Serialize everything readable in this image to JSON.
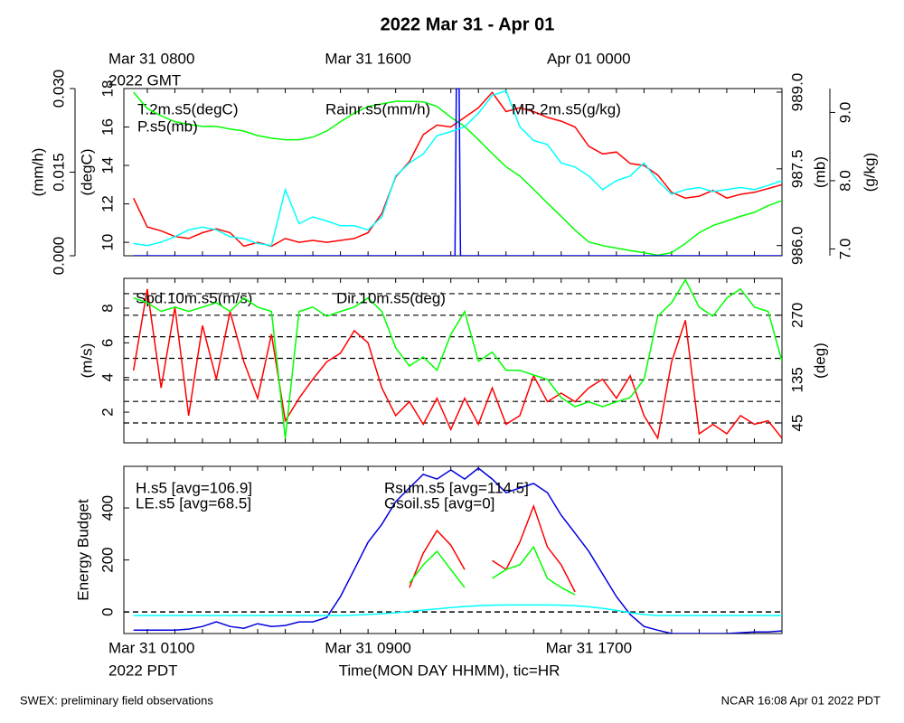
{
  "title": "2022 Mar 31 - Apr 01",
  "footer_left": "SWEX: preliminary field observations",
  "footer_right": "NCAR 16:08 Apr 01 2022 PDT",
  "chart_data": [
    {
      "type": "line",
      "xlim": [
        -0.85,
        23
      ],
      "x2ticks": [
        {
          "value": 0,
          "label": "Mar 31 0800"
        },
        {
          "value": 8,
          "label": "Mar 31 1600"
        },
        {
          "value": 16,
          "label": "Apr 01 0000"
        }
      ],
      "x2_note": "2022 GMT",
      "axes": [
        {
          "label": "(mm/h)",
          "lim": [
            0,
            0.03
          ],
          "ticks": [
            {
              "value": 0,
              "label": "0.000"
            },
            {
              "value": 0.015,
              "label": "0.015"
            },
            {
              "value": 0.03,
              "label": "0.030"
            }
          ],
          "side": "left"
        },
        {
          "label": "(degC)",
          "lim": [
            9.3,
            18
          ],
          "ticks": [
            10,
            12,
            14,
            16,
            18
          ],
          "side": "left"
        },
        {
          "label": "(mb)",
          "lim": [
            985.8,
            989.07
          ],
          "ticks": [
            {
              "value": 986,
              "label": "986.0"
            },
            {
              "value": 987.5,
              "label": "987.5"
            },
            {
              "value": 989,
              "label": "989.0"
            }
          ],
          "side": "right"
        },
        {
          "label": "(g/kg)",
          "lim": [
            6.9,
            9.35
          ],
          "ticks": [
            {
              "value": 7,
              "label": "7.0"
            },
            {
              "value": 8,
              "label": "8.0"
            },
            {
              "value": 9,
              "label": "9.0"
            }
          ],
          "side": "right"
        }
      ],
      "x": [
        -0.5,
        0,
        0.5,
        1,
        1.5,
        2,
        2.5,
        3,
        3.5,
        4,
        4.5,
        5,
        5.5,
        6,
        6.5,
        7,
        7.5,
        8,
        8.5,
        9,
        9.5,
        10,
        10.5,
        11,
        11.5,
        12,
        12.5,
        13,
        13.5,
        14,
        14.5,
        15,
        15.5,
        16,
        16.5,
        17,
        17.5,
        18,
        18.5,
        19,
        19.5,
        20,
        20.5,
        21,
        21.5,
        22,
        22.5,
        23
      ],
      "series": [
        {
          "name": "T.2m.s5(degC)",
          "color": "#ff0000",
          "axis": 1,
          "values": [
            12.3,
            10.8,
            10.6,
            10.3,
            10.2,
            10.5,
            10.7,
            10.5,
            9.8,
            10.0,
            9.8,
            10.2,
            10.0,
            10.1,
            10.0,
            10.1,
            10.2,
            10.5,
            11.5,
            13.4,
            14.2,
            15.6,
            16.1,
            16.0,
            16.5,
            17.0,
            17.8,
            16.8,
            17.0,
            16.8,
            16.5,
            16.3,
            16.0,
            15.0,
            14.6,
            14.7,
            14.1,
            14.0,
            13.5,
            12.6,
            12.3,
            12.4,
            12.7,
            12.3,
            12.5,
            12.6,
            12.8,
            13.0
          ]
        },
        {
          "name": "P.s5(mb)",
          "color": "#00ff00",
          "axis": 2,
          "values": [
            989.0,
            988.68,
            988.54,
            988.42,
            988.37,
            988.33,
            988.33,
            988.28,
            988.24,
            988.15,
            988.1,
            988.07,
            988.07,
            988.12,
            988.24,
            988.42,
            988.59,
            988.72,
            988.77,
            988.82,
            988.82,
            988.81,
            988.72,
            988.51,
            988.33,
            988.07,
            987.8,
            987.54,
            987.36,
            987.1,
            986.83,
            986.57,
            986.3,
            986.07,
            986.0,
            985.95,
            985.9,
            985.86,
            985.81,
            985.86,
            986.04,
            986.25,
            986.39,
            986.48,
            986.57,
            986.65,
            986.78,
            986.88
          ]
        },
        {
          "name": "Rainr.s5(mm/h)",
          "color": "#0000ff",
          "axis": 0,
          "x": [
            -0.5,
            11.15,
            11.2,
            11.3,
            11.35,
            23
          ],
          "values": [
            0,
            0,
            0.03,
            0.03,
            0,
            0
          ]
        },
        {
          "name": "MR.2m.s5(g/kg)",
          "color": "#00ffff",
          "axis": 3,
          "values": [
            7.08,
            7.05,
            7.1,
            7.18,
            7.28,
            7.32,
            7.28,
            7.18,
            7.15,
            7.08,
            7.05,
            7.87,
            7.37,
            7.47,
            7.41,
            7.34,
            7.34,
            7.28,
            7.47,
            8.07,
            8.26,
            8.39,
            8.66,
            8.72,
            8.79,
            8.99,
            9.25,
            9.32,
            8.79,
            8.59,
            8.53,
            8.26,
            8.2,
            8.07,
            7.87,
            8.0,
            8.07,
            8.26,
            8.0,
            7.8,
            7.87,
            7.9,
            7.84,
            7.87,
            7.9,
            7.87,
            7.93,
            8.0
          ]
        }
      ]
    },
    {
      "type": "line",
      "xlim": [
        -0.85,
        23
      ],
      "axes": [
        {
          "label": "(m/s)",
          "lim": [
            0.23,
            9.72
          ],
          "ticks": [
            2,
            4,
            6,
            8
          ],
          "side": "left"
        },
        {
          "label": "(deg)",
          "lim": [
            3.5,
            347
          ],
          "ticks": [
            45,
            135,
            270
          ],
          "side": "right"
        }
      ],
      "grid_axis": 1,
      "grid": [
        45,
        90,
        135,
        180,
        225,
        270,
        315
      ],
      "x": [
        -0.5,
        0,
        0.5,
        1,
        1.5,
        2,
        2.5,
        3,
        3.5,
        4,
        4.5,
        5,
        5.5,
        6,
        6.5,
        7,
        7.5,
        8,
        8.5,
        9,
        9.5,
        10,
        10.5,
        11,
        11.5,
        12,
        12.5,
        13,
        13.5,
        14,
        14.5,
        15,
        15.5,
        16,
        16.5,
        17,
        17.5,
        18,
        18.5,
        19,
        19.5,
        20,
        20.5,
        21,
        21.5,
        22,
        22.5,
        23
      ],
      "series": [
        {
          "name": "Spd.10m.s5(m/s)",
          "color": "#ff0000",
          "axis": 0,
          "values": [
            4.4,
            9.1,
            3.4,
            8.05,
            1.8,
            7.0,
            3.9,
            7.8,
            4.9,
            2.8,
            6.5,
            1.5,
            2.8,
            3.9,
            4.9,
            5.4,
            6.7,
            6.0,
            3.4,
            1.8,
            2.6,
            1.3,
            2.8,
            1.0,
            2.8,
            1.3,
            3.4,
            1.3,
            1.8,
            4.1,
            2.6,
            3.1,
            2.6,
            3.4,
            3.9,
            2.8,
            4.1,
            1.8,
            0.5,
            4.9,
            7.3,
            0.75,
            1.3,
            0.75,
            1.8,
            1.3,
            1.5,
            0.5
          ]
        },
        {
          "name": "Dir.10m.s5(deg)",
          "color": "#00ff00",
          "axis": 1,
          "values": [
            306,
            296,
            278,
            287,
            278,
            287,
            296,
            278,
            306,
            287,
            278,
            13,
            278,
            287,
            268,
            278,
            287,
            306,
            278,
            202,
            164,
            183,
            155,
            230,
            278,
            174,
            193,
            155,
            155,
            145,
            136,
            98,
            79,
            89,
            79,
            89,
            98,
            136,
            268,
            296,
            344,
            287,
            268,
            306,
            325,
            287,
            278,
            174
          ]
        }
      ]
    },
    {
      "type": "line",
      "xlim": [
        -0.85,
        23
      ],
      "xticks": [
        {
          "value": 0,
          "label": "Mar 31 0100"
        },
        {
          "value": 8,
          "label": "Mar 31 0900"
        },
        {
          "value": 16,
          "label": "Mar 31 1700"
        }
      ],
      "x_note": "2022 PDT",
      "xlabel": "Time(MON DAY HHMM), tic=HR",
      "xminorticks": [
        0,
        1,
        2,
        3,
        4,
        5,
        6,
        7,
        8,
        9,
        10,
        11,
        12,
        13,
        14,
        15,
        16,
        17,
        18,
        19,
        20,
        21,
        22
      ],
      "axes": [
        {
          "label": "Energy Budget",
          "lim": [
            -83,
            560
          ],
          "ticks": [
            0,
            200,
            400
          ],
          "side": "left"
        }
      ],
      "reference_line": 0,
      "x": [
        -0.5,
        0,
        0.5,
        1,
        1.5,
        2,
        2.5,
        3,
        3.5,
        4,
        4.5,
        5,
        5.5,
        6,
        6.5,
        7,
        7.5,
        8,
        8.5,
        9,
        9.5,
        10,
        10.5,
        11,
        11.5,
        12,
        12.5,
        13,
        13.5,
        14,
        14.5,
        15,
        15.5,
        16,
        16.5,
        17,
        17.5,
        18,
        18.5,
        19,
        19.5,
        20,
        20.5,
        21,
        21.5,
        22,
        22.5,
        23
      ],
      "series": [
        {
          "name": "H.s5 [avg=106.9]",
          "color": "#ff0000",
          "axis": 0,
          "values": [
            null,
            null,
            null,
            null,
            null,
            null,
            null,
            null,
            null,
            null,
            null,
            null,
            null,
            null,
            null,
            null,
            null,
            null,
            null,
            null,
            94,
            226,
            313,
            257,
            163,
            null,
            198,
            163,
            268,
            407,
            250,
            181,
            77,
            null,
            null,
            null,
            null,
            null,
            null,
            null,
            null,
            null,
            null,
            null,
            null,
            null,
            null,
            null
          ]
        },
        {
          "name": "LE.s5 [avg=68.5]",
          "color": "#00ff00",
          "axis": 0,
          "values": [
            null,
            null,
            null,
            null,
            null,
            null,
            null,
            null,
            null,
            null,
            null,
            null,
            null,
            null,
            null,
            null,
            null,
            null,
            null,
            null,
            111,
            181,
            233,
            163,
            94,
            null,
            129,
            163,
            181,
            250,
            129,
            94,
            66,
            null,
            null,
            null,
            null,
            null,
            null,
            null,
            null,
            null,
            null,
            null,
            null,
            null,
            null,
            null
          ]
        },
        {
          "name": "Rsum.s5 [avg=114.5]",
          "color": "#0000dd",
          "axis": 0,
          "values": [
            -70,
            -70,
            -70,
            -70,
            -66,
            -56,
            -38,
            -56,
            -63,
            -45,
            -56,
            -52,
            -38,
            -38,
            -21,
            59,
            163,
            268,
            337,
            424,
            477,
            529,
            511,
            546,
            511,
            553,
            511,
            459,
            477,
            494,
            459,
            372,
            303,
            233,
            146,
            59,
            -10,
            -56,
            -70,
            -83,
            -83,
            -83,
            -83,
            -83,
            -80,
            -77,
            -77,
            -73
          ]
        },
        {
          "name": "Gsoil.s5 [avg=0]",
          "color": "#00ffff",
          "axis": 0,
          "values": [
            -14,
            -14,
            -14,
            -14,
            -14,
            -14,
            -14,
            -14,
            -14,
            -14,
            -14,
            -14,
            -14,
            -14,
            -14,
            -14,
            -12,
            -10,
            -7,
            -3,
            2,
            7,
            12,
            17,
            21,
            24,
            26,
            27,
            27,
            27,
            27,
            26,
            24,
            20,
            14,
            6,
            -3,
            -10,
            -14,
            -14,
            -14,
            -14,
            -14,
            -14,
            -14,
            -14,
            -14,
            -14
          ]
        }
      ]
    }
  ]
}
